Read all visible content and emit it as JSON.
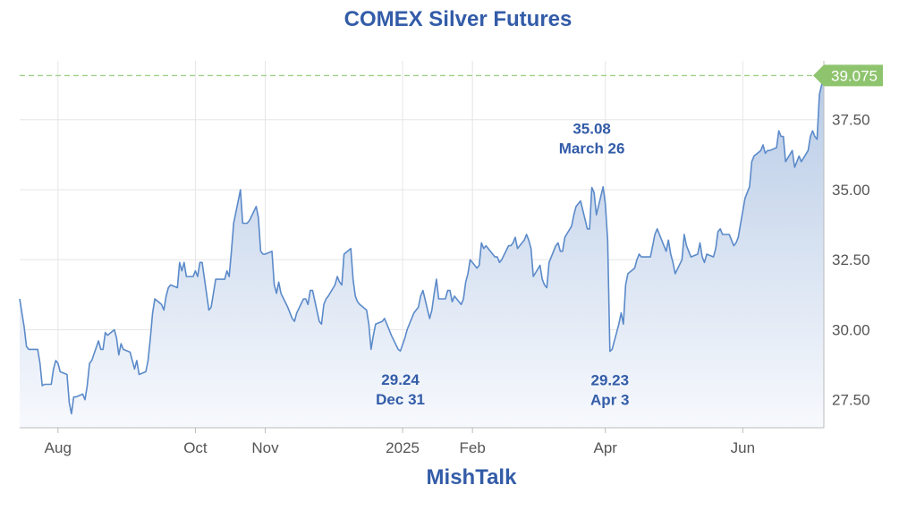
{
  "chart_data": {
    "type": "area",
    "title": "COMEX Silver Futures",
    "source_credit": "MishTalk",
    "ylim": [
      26.5,
      39.6
    ],
    "y_ticks": [
      "27.50",
      "30.00",
      "32.50",
      "35.00",
      "37.50"
    ],
    "y_tick_values": [
      27.5,
      30.0,
      32.5,
      35.0,
      37.5
    ],
    "x_ticks": [
      {
        "label": "Aug",
        "date": "2024-08-01"
      },
      {
        "label": "Oct",
        "date": "2024-10-01"
      },
      {
        "label": "Nov",
        "date": "2024-11-01"
      },
      {
        "label": "2025",
        "date": "2025-01-01"
      },
      {
        "label": "Feb",
        "date": "2025-02-01"
      },
      {
        "label": "Apr",
        "date": "2025-04-01"
      },
      {
        "label": "Jun",
        "date": "2025-06-01"
      }
    ],
    "xlim": [
      "2024-07-15",
      "2025-07-07"
    ],
    "grid": true,
    "last_price": {
      "label": "39.075",
      "value": 39.075
    },
    "annotations": [
      {
        "value_label": "35.08",
        "date_label": "March 26",
        "position": "above",
        "date": "2025-03-26",
        "value": 35.08
      },
      {
        "value_label": "29.24",
        "date_label": "Dec 31",
        "position": "below",
        "date": "2024-12-31",
        "value": 29.24
      },
      {
        "value_label": "29.23",
        "date_label": "Apr 3",
        "position": "below",
        "date": "2025-04-03",
        "value": 29.23
      }
    ],
    "colors": {
      "line": "#5b8ac9",
      "fill_top": "#b8cbe6",
      "fill_bottom": "#f7f9fd",
      "last_price_bg": "#8fc46f",
      "last_price_line": "#9fd08a",
      "accent_text": "#335ca8"
    },
    "series": [
      {
        "points": [
          [
            "2024-07-15",
            31.1
          ],
          [
            "2024-07-16",
            30.6
          ],
          [
            "2024-07-17",
            30.1
          ],
          [
            "2024-07-18",
            29.4
          ],
          [
            "2024-07-19",
            29.3
          ],
          [
            "2024-07-22",
            29.3
          ],
          [
            "2024-07-23",
            29.3
          ],
          [
            "2024-07-24",
            28.8
          ],
          [
            "2024-07-25",
            28.0
          ],
          [
            "2024-07-26",
            28.05
          ],
          [
            "2024-07-29",
            28.05
          ],
          [
            "2024-07-30",
            28.6
          ],
          [
            "2024-07-31",
            28.9
          ],
          [
            "2024-08-01",
            28.8
          ],
          [
            "2024-08-02",
            28.5
          ],
          [
            "2024-08-05",
            28.4
          ],
          [
            "2024-08-06",
            27.4
          ],
          [
            "2024-08-07",
            27.0
          ],
          [
            "2024-08-08",
            27.6
          ],
          [
            "2024-08-09",
            27.6
          ],
          [
            "2024-08-12",
            27.7
          ],
          [
            "2024-08-13",
            27.5
          ],
          [
            "2024-08-14",
            28.0
          ],
          [
            "2024-08-15",
            28.8
          ],
          [
            "2024-08-16",
            28.9
          ],
          [
            "2024-08-19",
            29.6
          ],
          [
            "2024-08-20",
            29.3
          ],
          [
            "2024-08-21",
            29.3
          ],
          [
            "2024-08-22",
            29.9
          ],
          [
            "2024-08-23",
            29.8
          ],
          [
            "2024-08-26",
            30.0
          ],
          [
            "2024-08-27",
            29.7
          ],
          [
            "2024-08-28",
            29.1
          ],
          [
            "2024-08-29",
            29.5
          ],
          [
            "2024-08-30",
            29.3
          ],
          [
            "2024-09-02",
            29.2
          ],
          [
            "2024-09-03",
            28.9
          ],
          [
            "2024-09-04",
            28.6
          ],
          [
            "2024-09-05",
            28.9
          ],
          [
            "2024-09-06",
            28.4
          ],
          [
            "2024-09-09",
            28.5
          ],
          [
            "2024-09-10",
            28.9
          ],
          [
            "2024-09-11",
            29.7
          ],
          [
            "2024-09-12",
            30.6
          ],
          [
            "2024-09-13",
            31.1
          ],
          [
            "2024-09-16",
            30.9
          ],
          [
            "2024-09-17",
            30.7
          ],
          [
            "2024-09-18",
            31.2
          ],
          [
            "2024-09-19",
            31.5
          ],
          [
            "2024-09-20",
            31.6
          ],
          [
            "2024-09-23",
            31.5
          ],
          [
            "2024-09-24",
            32.4
          ],
          [
            "2024-09-25",
            32.1
          ],
          [
            "2024-09-26",
            32.4
          ],
          [
            "2024-09-27",
            31.9
          ],
          [
            "2024-09-30",
            31.9
          ],
          [
            "2024-10-01",
            32.1
          ],
          [
            "2024-10-02",
            31.9
          ],
          [
            "2024-10-03",
            32.4
          ],
          [
            "2024-10-04",
            32.4
          ],
          [
            "2024-10-07",
            30.7
          ],
          [
            "2024-10-08",
            30.8
          ],
          [
            "2024-10-09",
            31.3
          ],
          [
            "2024-10-10",
            31.8
          ],
          [
            "2024-10-11",
            31.8
          ],
          [
            "2024-10-14",
            31.8
          ],
          [
            "2024-10-15",
            32.1
          ],
          [
            "2024-10-16",
            31.9
          ],
          [
            "2024-10-17",
            32.8
          ],
          [
            "2024-10-18",
            33.8
          ],
          [
            "2024-10-21",
            35.0
          ],
          [
            "2024-10-22",
            33.8
          ],
          [
            "2024-10-23",
            33.8
          ],
          [
            "2024-10-24",
            33.8
          ],
          [
            "2024-10-25",
            33.9
          ],
          [
            "2024-10-28",
            34.4
          ],
          [
            "2024-10-29",
            34.0
          ],
          [
            "2024-10-30",
            32.8
          ],
          [
            "2024-10-31",
            32.7
          ],
          [
            "2024-11-01",
            32.7
          ],
          [
            "2024-11-04",
            32.8
          ],
          [
            "2024-11-05",
            31.6
          ],
          [
            "2024-11-06",
            31.3
          ],
          [
            "2024-11-07",
            31.7
          ],
          [
            "2024-11-08",
            31.3
          ],
          [
            "2024-11-11",
            30.8
          ],
          [
            "2024-11-12",
            30.6
          ],
          [
            "2024-11-13",
            30.4
          ],
          [
            "2024-11-14",
            30.3
          ],
          [
            "2024-11-15",
            30.6
          ],
          [
            "2024-11-18",
            31.1
          ],
          [
            "2024-11-19",
            31.1
          ],
          [
            "2024-11-20",
            30.9
          ],
          [
            "2024-11-21",
            31.4
          ],
          [
            "2024-11-22",
            31.4
          ],
          [
            "2024-11-25",
            30.3
          ],
          [
            "2024-11-26",
            30.2
          ],
          [
            "2024-11-27",
            30.9
          ],
          [
            "2024-11-28",
            31.1
          ],
          [
            "2024-11-29",
            31.2
          ],
          [
            "2024-12-02",
            31.6
          ],
          [
            "2024-12-03",
            31.9
          ],
          [
            "2024-12-04",
            31.7
          ],
          [
            "2024-12-05",
            31.6
          ],
          [
            "2024-12-06",
            32.7
          ],
          [
            "2024-12-09",
            32.9
          ],
          [
            "2024-12-10",
            31.8
          ],
          [
            "2024-12-11",
            31.2
          ],
          [
            "2024-12-12",
            31.0
          ],
          [
            "2024-12-13",
            30.9
          ],
          [
            "2024-12-16",
            30.7
          ],
          [
            "2024-12-17",
            30.2
          ],
          [
            "2024-12-18",
            29.3
          ],
          [
            "2024-12-19",
            29.8
          ],
          [
            "2024-12-20",
            30.2
          ],
          [
            "2024-12-23",
            30.3
          ],
          [
            "2024-12-24",
            30.4
          ],
          [
            "2024-12-26",
            30.0
          ],
          [
            "2024-12-27",
            29.8
          ],
          [
            "2024-12-30",
            29.3
          ],
          [
            "2024-12-31",
            29.24
          ],
          [
            "2025-01-02",
            29.7
          ],
          [
            "2025-01-03",
            30.0
          ],
          [
            "2025-01-06",
            30.6
          ],
          [
            "2025-01-07",
            30.7
          ],
          [
            "2025-01-08",
            30.8
          ],
          [
            "2025-01-09",
            31.2
          ],
          [
            "2025-01-10",
            31.4
          ],
          [
            "2025-01-13",
            30.4
          ],
          [
            "2025-01-14",
            30.7
          ],
          [
            "2025-01-15",
            31.3
          ],
          [
            "2025-01-16",
            31.8
          ],
          [
            "2025-01-17",
            31.1
          ],
          [
            "2025-01-20",
            31.1
          ],
          [
            "2025-01-21",
            31.4
          ],
          [
            "2025-01-22",
            31.4
          ],
          [
            "2025-01-23",
            31.0
          ],
          [
            "2025-01-24",
            31.2
          ],
          [
            "2025-01-27",
            30.9
          ],
          [
            "2025-01-28",
            31.1
          ],
          [
            "2025-01-29",
            31.7
          ],
          [
            "2025-01-30",
            32.0
          ],
          [
            "2025-01-31",
            32.5
          ],
          [
            "2025-02-03",
            32.2
          ],
          [
            "2025-02-04",
            32.3
          ],
          [
            "2025-02-05",
            33.1
          ],
          [
            "2025-02-06",
            32.9
          ],
          [
            "2025-02-07",
            33.0
          ],
          [
            "2025-02-10",
            32.7
          ],
          [
            "2025-02-11",
            32.6
          ],
          [
            "2025-02-12",
            32.6
          ],
          [
            "2025-02-13",
            32.4
          ],
          [
            "2025-02-14",
            32.5
          ],
          [
            "2025-02-17",
            33.0
          ],
          [
            "2025-02-18",
            33.0
          ],
          [
            "2025-02-19",
            33.1
          ],
          [
            "2025-02-20",
            33.3
          ],
          [
            "2025-02-21",
            32.9
          ],
          [
            "2025-02-24",
            33.2
          ],
          [
            "2025-02-25",
            33.4
          ],
          [
            "2025-02-26",
            33.2
          ],
          [
            "2025-02-27",
            32.9
          ],
          [
            "2025-02-28",
            31.9
          ],
          [
            "2025-03-03",
            32.3
          ],
          [
            "2025-03-04",
            31.8
          ],
          [
            "2025-03-05",
            31.6
          ],
          [
            "2025-03-06",
            31.5
          ],
          [
            "2025-03-07",
            32.4
          ],
          [
            "2025-03-10",
            33.0
          ],
          [
            "2025-03-11",
            33.1
          ],
          [
            "2025-03-12",
            32.8
          ],
          [
            "2025-03-13",
            32.8
          ],
          [
            "2025-03-14",
            33.3
          ],
          [
            "2025-03-17",
            33.7
          ],
          [
            "2025-03-18",
            34.1
          ],
          [
            "2025-03-19",
            34.4
          ],
          [
            "2025-03-20",
            34.5
          ],
          [
            "2025-03-21",
            34.6
          ],
          [
            "2025-03-24",
            33.6
          ],
          [
            "2025-03-25",
            33.6
          ],
          [
            "2025-03-26",
            35.08
          ],
          [
            "2025-03-27",
            34.9
          ],
          [
            "2025-03-28",
            34.1
          ],
          [
            "2025-03-31",
            35.1
          ],
          [
            "2025-04-01",
            34.5
          ],
          [
            "2025-04-02",
            33.2
          ],
          [
            "2025-04-03",
            29.23
          ],
          [
            "2025-04-04",
            29.3
          ],
          [
            "2025-04-07",
            30.2
          ],
          [
            "2025-04-08",
            30.6
          ],
          [
            "2025-04-09",
            30.2
          ],
          [
            "2025-04-10",
            31.6
          ],
          [
            "2025-04-11",
            32.0
          ],
          [
            "2025-04-14",
            32.2
          ],
          [
            "2025-04-15",
            32.5
          ],
          [
            "2025-04-16",
            32.7
          ],
          [
            "2025-04-17",
            32.6
          ],
          [
            "2025-04-21",
            32.6
          ],
          [
            "2025-04-22",
            33.0
          ],
          [
            "2025-04-23",
            33.4
          ],
          [
            "2025-04-24",
            33.6
          ],
          [
            "2025-04-25",
            33.4
          ],
          [
            "2025-04-28",
            32.8
          ],
          [
            "2025-04-29",
            33.2
          ],
          [
            "2025-04-30",
            32.7
          ],
          [
            "2025-05-01",
            32.4
          ],
          [
            "2025-05-02",
            32.0
          ],
          [
            "2025-05-05",
            32.5
          ],
          [
            "2025-05-06",
            33.4
          ],
          [
            "2025-05-07",
            33.0
          ],
          [
            "2025-05-08",
            32.8
          ],
          [
            "2025-05-09",
            32.6
          ],
          [
            "2025-05-12",
            32.7
          ],
          [
            "2025-05-13",
            33.1
          ],
          [
            "2025-05-14",
            32.6
          ],
          [
            "2025-05-15",
            32.4
          ],
          [
            "2025-05-16",
            32.7
          ],
          [
            "2025-05-19",
            32.6
          ],
          [
            "2025-05-20",
            32.9
          ],
          [
            "2025-05-21",
            33.5
          ],
          [
            "2025-05-22",
            33.6
          ],
          [
            "2025-05-23",
            33.4
          ],
          [
            "2025-05-26",
            33.4
          ],
          [
            "2025-05-27",
            33.2
          ],
          [
            "2025-05-28",
            33.0
          ],
          [
            "2025-05-29",
            33.1
          ],
          [
            "2025-05-30",
            33.3
          ],
          [
            "2025-06-02",
            34.7
          ],
          [
            "2025-06-03",
            34.9
          ],
          [
            "2025-06-04",
            35.1
          ],
          [
            "2025-06-05",
            36.0
          ],
          [
            "2025-06-06",
            36.2
          ],
          [
            "2025-06-09",
            36.4
          ],
          [
            "2025-06-10",
            36.6
          ],
          [
            "2025-06-11",
            36.3
          ],
          [
            "2025-06-12",
            36.4
          ],
          [
            "2025-06-13",
            36.4
          ],
          [
            "2025-06-16",
            36.5
          ],
          [
            "2025-06-17",
            37.1
          ],
          [
            "2025-06-18",
            36.9
          ],
          [
            "2025-06-19",
            36.9
          ],
          [
            "2025-06-20",
            36.0
          ],
          [
            "2025-06-23",
            36.4
          ],
          [
            "2025-06-24",
            35.8
          ],
          [
            "2025-06-25",
            36.0
          ],
          [
            "2025-06-26",
            36.2
          ],
          [
            "2025-06-27",
            36.0
          ],
          [
            "2025-06-30",
            36.4
          ],
          [
            "2025-07-01",
            36.9
          ],
          [
            "2025-07-02",
            37.1
          ],
          [
            "2025-07-03",
            36.9
          ],
          [
            "2025-07-04",
            36.8
          ],
          [
            "2025-07-05",
            38.4
          ],
          [
            "2025-07-07",
            39.075
          ]
        ]
      }
    ]
  }
}
